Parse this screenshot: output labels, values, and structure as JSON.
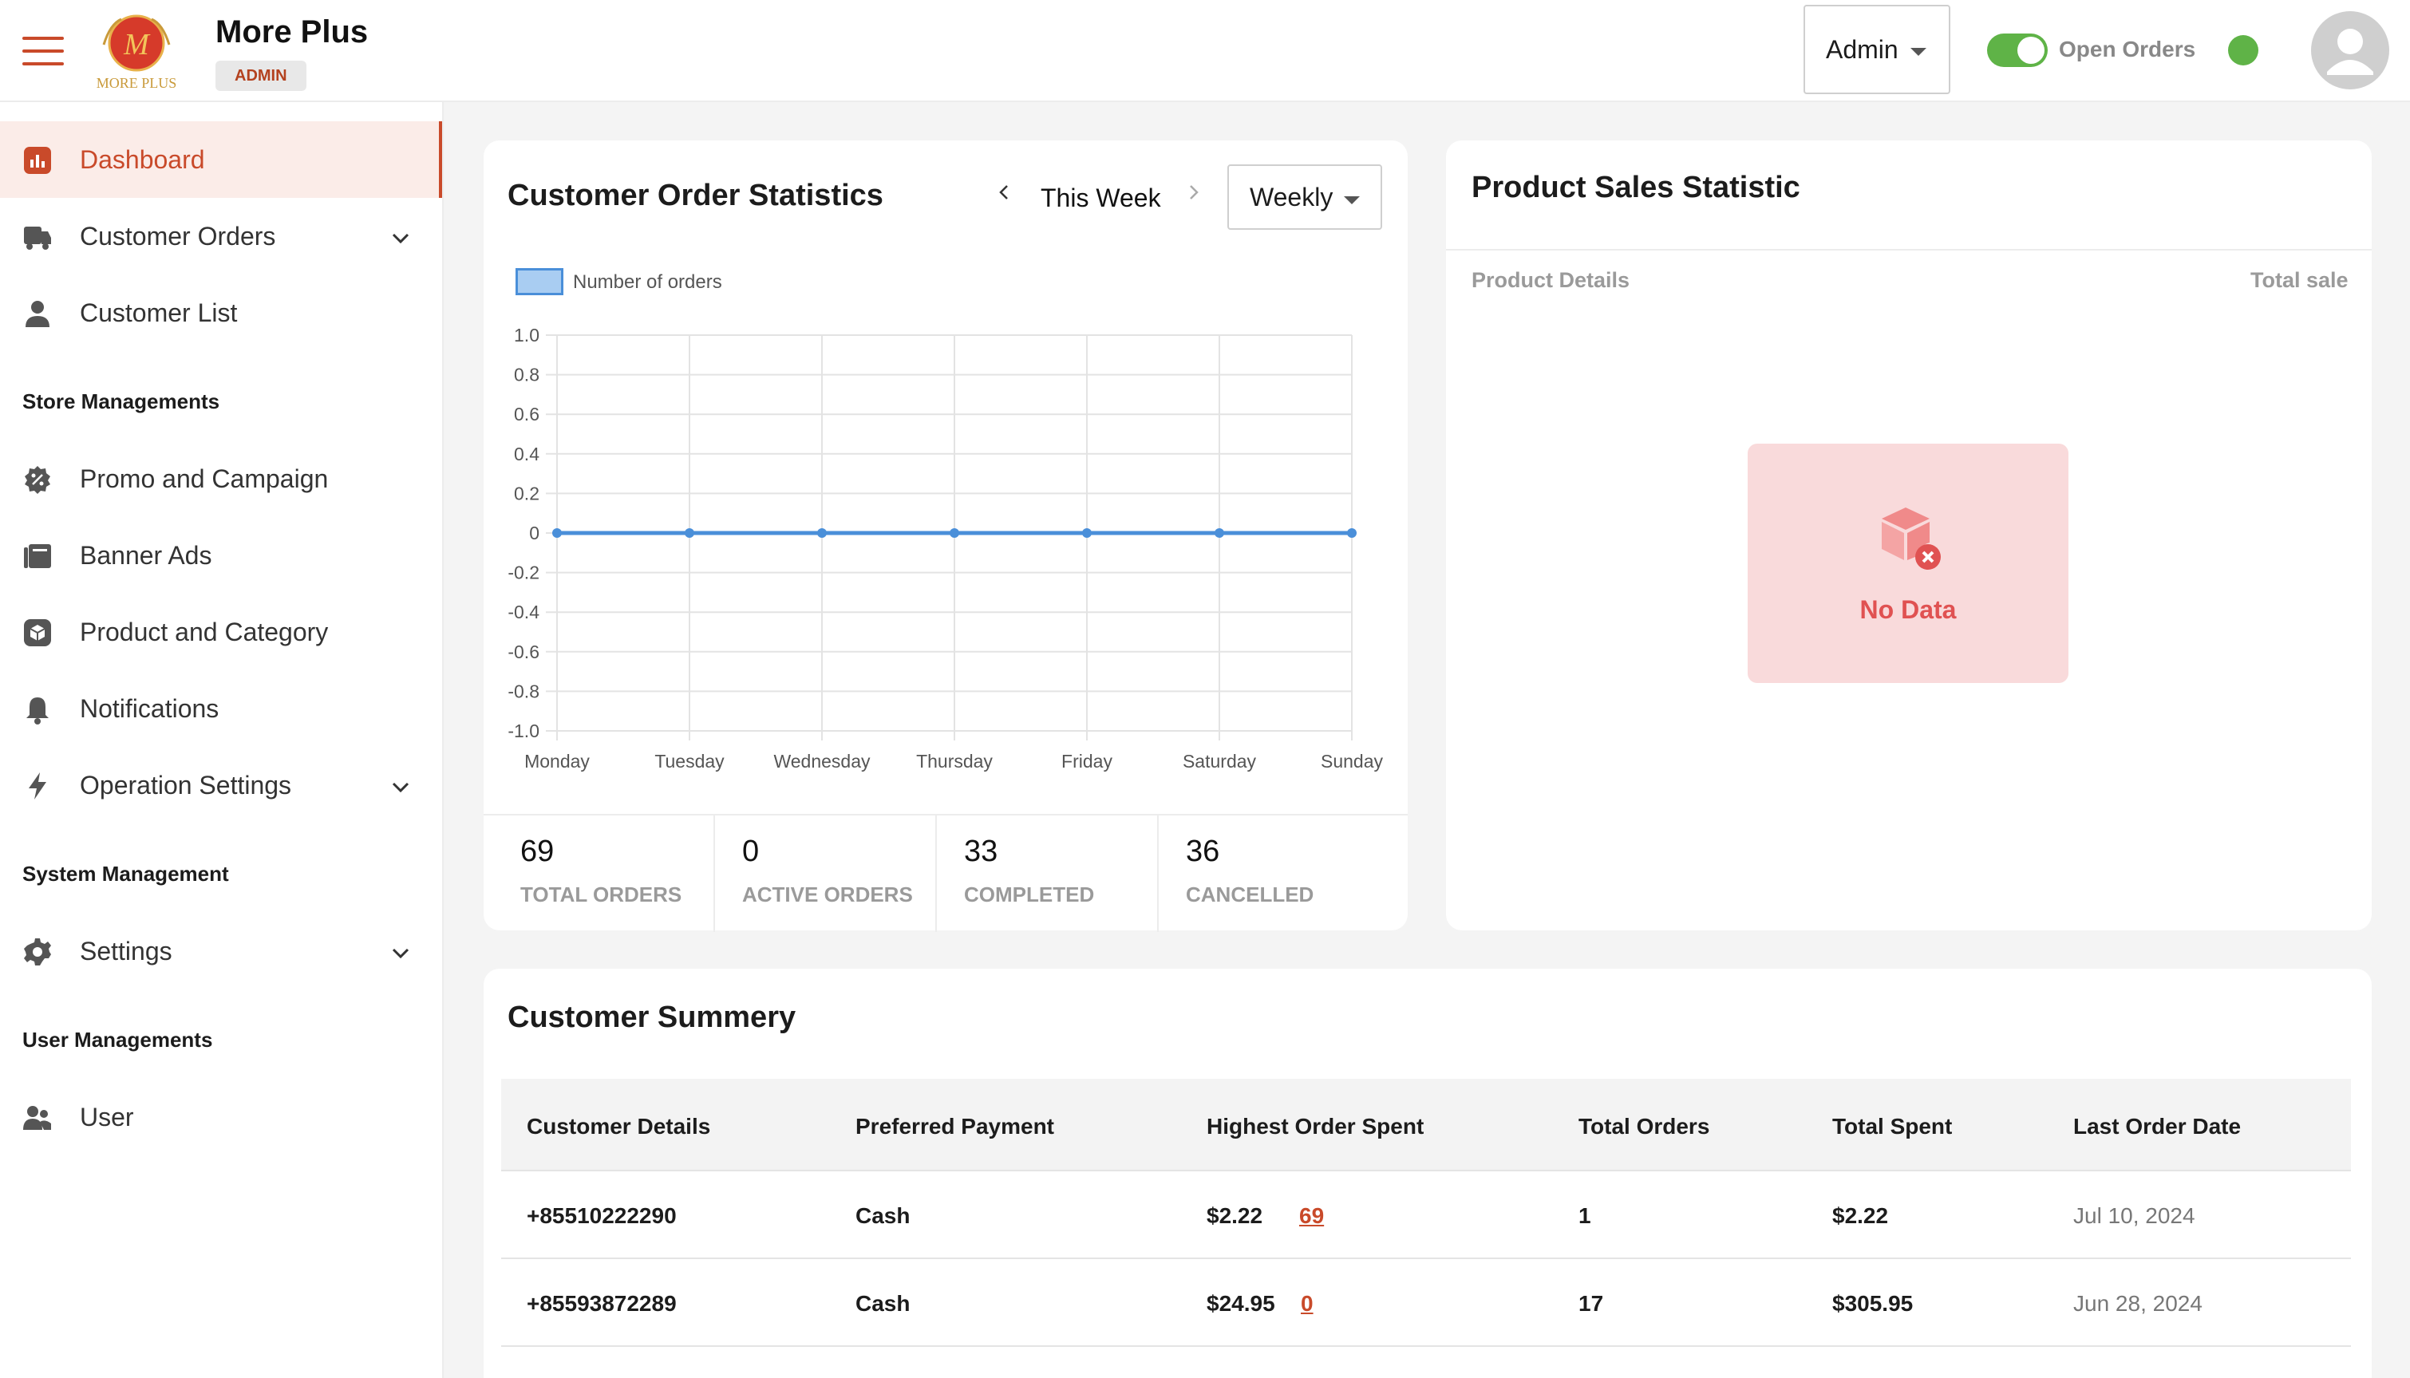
{
  "header": {
    "app_name": "More Plus",
    "logo_text": "MORE PLUS",
    "role_badge": "ADMIN",
    "user_select": "Admin",
    "toggle_label": "Open Orders",
    "toggle_on": true,
    "accent_color": "#c94a2a",
    "status_color": "#5fb347"
  },
  "sidebar": {
    "items": [
      {
        "label": "Dashboard",
        "icon": "chart-icon",
        "active": true
      },
      {
        "label": "Customer Orders",
        "icon": "truck-icon",
        "has_children": true
      },
      {
        "label": "Customer List",
        "icon": "person-icon"
      },
      {
        "label": "Promo and Campaign",
        "icon": "badge-icon"
      },
      {
        "label": "Banner Ads",
        "icon": "banner-icon"
      },
      {
        "label": "Product and Category",
        "icon": "box-icon"
      },
      {
        "label": "Notifications",
        "icon": "bell-icon"
      },
      {
        "label": "Operation Settings",
        "icon": "bolt-icon",
        "has_children": true
      },
      {
        "label": "Settings",
        "icon": "gear-icon",
        "has_children": true
      },
      {
        "label": "User",
        "icon": "users-icon"
      }
    ],
    "sections": [
      "Store Managements",
      "System Management",
      "User Managements"
    ]
  },
  "order_stats": {
    "title": "Customer Order Statistics",
    "period_label": "This Week",
    "period_select": "Weekly",
    "legend": "Number of orders",
    "stats": [
      {
        "value": "69",
        "label": "TOTAL ORDERS"
      },
      {
        "value": "0",
        "label": "ACTIVE ORDERS"
      },
      {
        "value": "33",
        "label": "COMPLETED"
      },
      {
        "value": "36",
        "label": "CANCELLED"
      }
    ]
  },
  "chart_data": {
    "type": "line",
    "categories": [
      "Monday",
      "Tuesday",
      "Wednesday",
      "Thursday",
      "Friday",
      "Saturday",
      "Sunday"
    ],
    "series": [
      {
        "name": "Number of orders",
        "values": [
          0,
          0,
          0,
          0,
          0,
          0,
          0
        ]
      }
    ],
    "ylim": [
      -1.0,
      1.0
    ],
    "yticks": [
      "1.0",
      "0.8",
      "0.6",
      "0.4",
      "0.2",
      "0",
      "-0.2",
      "-0.4",
      "-0.6",
      "-0.8",
      "-1.0"
    ],
    "grid": true,
    "legend_position": "top-left",
    "line_color": "#4a8fd9"
  },
  "product_sales": {
    "title": "Product Sales Statistic",
    "col_left": "Product Details",
    "col_right": "Total sale",
    "empty_text": "No Data"
  },
  "customer_summary": {
    "title": "Customer Summery",
    "columns": [
      "Customer Details",
      "Preferred Payment",
      "Highest Order Spent",
      "Total Orders",
      "Total Spent",
      "Last Order Date"
    ],
    "rows": [
      {
        "customer": "+85510222290",
        "payment": "Cash",
        "highest": "$2.22",
        "highest_link": "69",
        "orders": "1",
        "spent": "$2.22",
        "last_date": "Jul 10, 2024"
      },
      {
        "customer": "+85593872289",
        "payment": "Cash",
        "highest": "$24.95",
        "highest_link": "0",
        "orders": "17",
        "spent": "$305.95",
        "last_date": "Jun 28, 2024"
      }
    ]
  }
}
